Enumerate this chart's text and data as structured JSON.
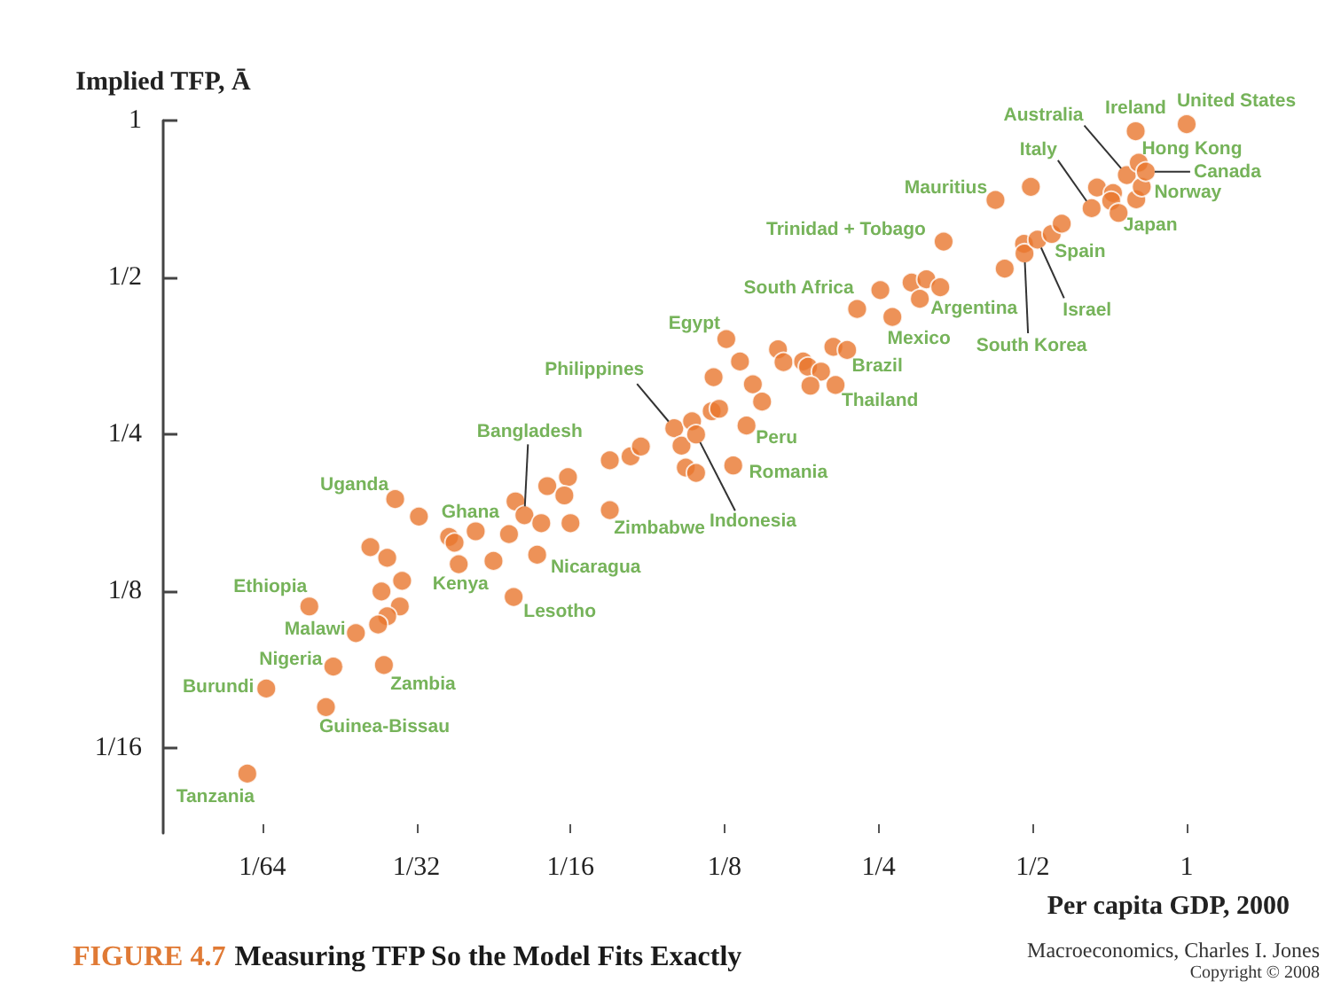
{
  "chart_data": {
    "type": "scatter",
    "title": "FIGURE 4.7 Measuring TFP So the Model Fits Exactly",
    "xlabel": "Per capita GDP, 2000",
    "ylabel": "Implied TFP, Ā",
    "log": "xy",
    "grid": false,
    "marker": "circle",
    "color": "#e8772e",
    "xlim": [
      0.01,
      1
    ],
    "ylim": [
      0.043,
      1
    ],
    "xticks": [
      {
        "value": 0.015625,
        "label": "1/64"
      },
      {
        "value": 0.03125,
        "label": "1/32"
      },
      {
        "value": 0.0625,
        "label": "1/16"
      },
      {
        "value": 0.125,
        "label": "1/8"
      },
      {
        "value": 0.25,
        "label": "1/4"
      },
      {
        "value": 0.5,
        "label": "1/2"
      },
      1
    ],
    "yticks": [
      {
        "value": 0.0625,
        "label": "1/16"
      },
      {
        "value": 0.125,
        "label": "1/8"
      },
      {
        "value": 0.25,
        "label": "1/4"
      },
      {
        "value": 0.5,
        "label": "1/2"
      },
      1
    ],
    "x": [
      0.0284,
      0.0316,
      0.0362,
      0.0371,
      0.0408,
      0.0474,
      0.0488,
      0.0508,
      0.0548,
      0.0563,
      0.0618,
      0.0608,
      0.0625,
      0.0746,
      0.0746,
      0.0254,
      0.0274,
      0.0378,
      0.0442,
      0.0538,
      0.0293,
      0.0267,
      0.0193,
      0.029,
      0.0274,
      0.0263,
      0.0238,
      0.0484,
      0.0215,
      0.027,
      0.0159,
      0.0208,
      0.0146,
      0.0819,
      0.0858,
      0.0997,
      0.103,
      0.108,
      0.11,
      0.118,
      0.122,
      0.119,
      0.126,
      0.134,
      0.142,
      0.148,
      0.138,
      0.105,
      0.11,
      0.13,
      0.227,
      0.252,
      0.159,
      0.163,
      0.178,
      0.182,
      0.193,
      0.184,
      0.204,
      0.217,
      0.206,
      0.266,
      0.29,
      0.301,
      0.31,
      0.33,
      0.335,
      0.423,
      0.496,
      0.441,
      0.481,
      0.482,
      0.511,
      0.545,
      0.57,
      0.652,
      0.668,
      0.718,
      0.712,
      0.736,
      0.764,
      0.797,
      0.817,
      0.806,
      0.832,
      0.795,
      1.0
    ],
    "values": [
      0.188,
      0.174,
      0.159,
      0.155,
      0.163,
      0.161,
      0.186,
      0.175,
      0.169,
      0.199,
      0.207,
      0.191,
      0.169,
      0.223,
      0.179,
      0.152,
      0.145,
      0.141,
      0.143,
      0.147,
      0.131,
      0.125,
      0.117,
      0.117,
      0.112,
      0.108,
      0.104,
      0.122,
      0.0897,
      0.0903,
      0.0814,
      0.075,
      0.0559,
      0.227,
      0.237,
      0.257,
      0.238,
      0.265,
      0.25,
      0.277,
      0.28,
      0.322,
      0.381,
      0.345,
      0.312,
      0.289,
      0.26,
      0.216,
      0.211,
      0.218,
      0.435,
      0.473,
      0.364,
      0.344,
      0.345,
      0.337,
      0.33,
      0.31,
      0.368,
      0.363,
      0.311,
      0.42,
      0.489,
      0.455,
      0.496,
      0.479,
      0.586,
      0.704,
      0.746,
      0.52,
      0.58,
      0.556,
      0.591,
      0.606,
      0.634,
      0.679,
      0.744,
      0.726,
      0.701,
      0.665,
      0.786,
      0.706,
      0.746,
      0.83,
      0.798,
      0.954,
      0.984
    ],
    "annotations": [
      {
        "text": "Uganda",
        "x": 0.0284,
        "y": 0.188
      },
      {
        "text": "Ghana",
        "x": 0.0408,
        "y": 0.163
      },
      {
        "text": "Bangladesh",
        "x": 0.0508,
        "y": 0.175
      },
      {
        "text": "Kenya",
        "x": 0.0378,
        "y": 0.141
      },
      {
        "text": "Nicaragua",
        "x": 0.0538,
        "y": 0.147
      },
      {
        "text": "Lesotho",
        "x": 0.0484,
        "y": 0.122
      },
      {
        "text": "Zimbabwe",
        "x": 0.0746,
        "y": 0.179
      },
      {
        "text": "Ethiopia",
        "x": 0.0193,
        "y": 0.117
      },
      {
        "text": "Malawi",
        "x": 0.0238,
        "y": 0.104
      },
      {
        "text": "Nigeria",
        "x": 0.0215,
        "y": 0.0897
      },
      {
        "text": "Zambia",
        "x": 0.027,
        "y": 0.0903
      },
      {
        "text": "Burundi",
        "x": 0.0159,
        "y": 0.0814
      },
      {
        "text": "Guinea-Bissau",
        "x": 0.0208,
        "y": 0.075
      },
      {
        "text": "Tanzania",
        "x": 0.0146,
        "y": 0.0559
      },
      {
        "text": "Philippines",
        "x": 0.0997,
        "y": 0.257
      },
      {
        "text": "Indonesia",
        "x": 0.11,
        "y": 0.25
      },
      {
        "text": "Egypt",
        "x": 0.126,
        "y": 0.381
      },
      {
        "text": "Peru",
        "x": 0.138,
        "y": 0.26
      },
      {
        "text": "Romania",
        "x": 0.13,
        "y": 0.218
      },
      {
        "text": "South Africa",
        "x": 0.252,
        "y": 0.473
      },
      {
        "text": "Mexico",
        "x": 0.266,
        "y": 0.42
      },
      {
        "text": "Brazil",
        "x": 0.217,
        "y": 0.363
      },
      {
        "text": "Thailand",
        "x": 0.206,
        "y": 0.311
      },
      {
        "text": "Argentina",
        "x": 0.33,
        "y": 0.479
      },
      {
        "text": "Trinidad + Tobago",
        "x": 0.335,
        "y": 0.586
      },
      {
        "text": "Mauritius",
        "x": 0.423,
        "y": 0.704
      },
      {
        "text": "South Korea",
        "x": 0.482,
        "y": 0.556
      },
      {
        "text": "Israel",
        "x": 0.511,
        "y": 0.591
      },
      {
        "text": "Spain",
        "x": 0.545,
        "y": 0.606
      },
      {
        "text": "Italy",
        "x": 0.652,
        "y": 0.679
      },
      {
        "text": "Australia",
        "x": 0.764,
        "y": 0.786
      },
      {
        "text": "Japan",
        "x": 0.736,
        "y": 0.665
      },
      {
        "text": "Norway",
        "x": 0.817,
        "y": 0.746
      },
      {
        "text": "Hong Kong",
        "x": 0.806,
        "y": 0.83
      },
      {
        "text": "Canada",
        "x": 0.832,
        "y": 0.798
      },
      {
        "text": "Ireland",
        "x": 0.795,
        "y": 0.954
      },
      {
        "text": "United States",
        "x": 1.0,
        "y": 0.984
      },
      "Macroeconomics, Charles I. Jones",
      "Copyright © 2008"
    ]
  }
}
